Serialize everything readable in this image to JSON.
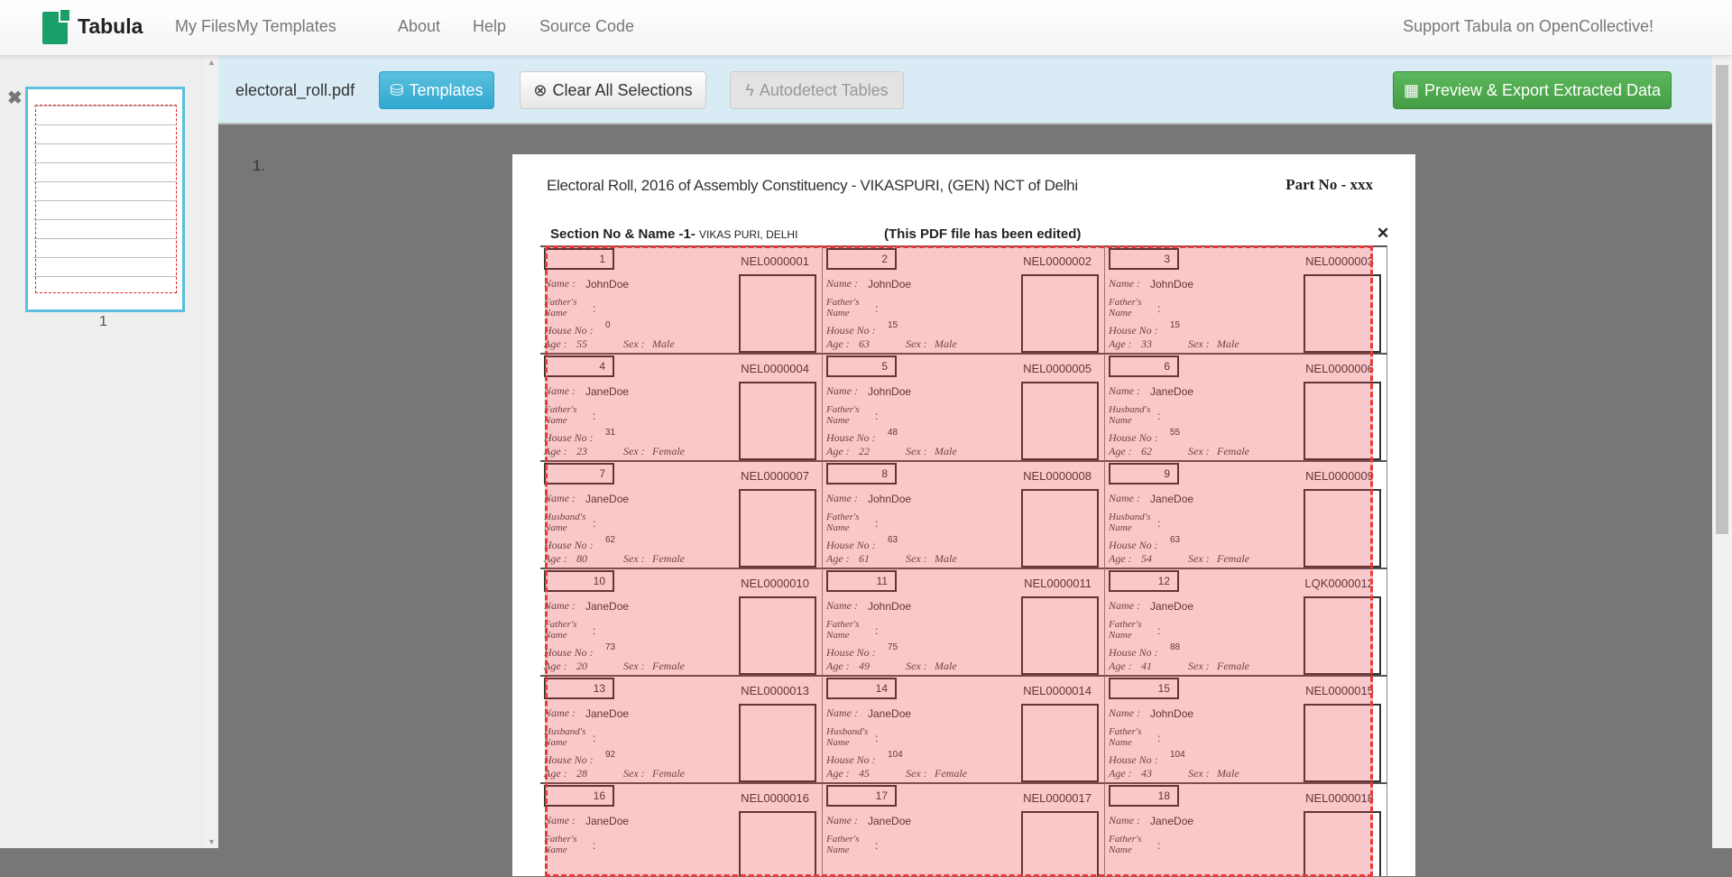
{
  "navbar": {
    "brand": "Tabula",
    "links": [
      "My Files",
      "My Templates",
      "About",
      "Help",
      "Source Code"
    ],
    "support": "Support Tabula on OpenCollective!"
  },
  "sidebar": {
    "page_label": "1"
  },
  "toolbar": {
    "filename": "electoral_roll.pdf",
    "templates": "Templates",
    "clear": "Clear All Selections",
    "autodetect": "Autodetect Tables",
    "export": "Preview & Export Extracted Data"
  },
  "colors": {
    "accent": "#5bc0de",
    "export": "#5cb85c",
    "selection": "#e23b3b",
    "toolbar_bg": "#d9ecf5"
  },
  "document": {
    "page_number": "1.",
    "title": "Electoral Roll, 2016 of Assembly Constituency - VIKASPURI,  (GEN) NCT of Delhi",
    "part_no": "Part No - xxx",
    "section_label": "Section No & Name -1-",
    "section_name": "VIKAS PURI, DELHI",
    "edited_note": "(This PDF file has been edited)",
    "labels": {
      "name": "Name :",
      "house": "House No :",
      "age": "Age :",
      "sex": "Sex :",
      "relation_suffix": "Name"
    },
    "entries": [
      {
        "n": "1",
        "id": "NEL0000001",
        "name": "JohnDoe",
        "rel": "Father's",
        "house": "0",
        "age": "55",
        "sex": "Male"
      },
      {
        "n": "2",
        "id": "NEL0000002",
        "name": "JohnDoe",
        "rel": "Father's",
        "house": "15",
        "age": "63",
        "sex": "Male"
      },
      {
        "n": "3",
        "id": "NEL0000003",
        "name": "JohnDoe",
        "rel": "Father's",
        "house": "15",
        "age": "33",
        "sex": "Male"
      },
      {
        "n": "4",
        "id": "NEL0000004",
        "name": "JaneDoe",
        "rel": "Father's",
        "house": "31",
        "age": "23",
        "sex": "Female"
      },
      {
        "n": "5",
        "id": "NEL0000005",
        "name": "JohnDoe",
        "rel": "Father's",
        "house": "48",
        "age": "22",
        "sex": "Male"
      },
      {
        "n": "6",
        "id": "NEL0000006",
        "name": "JaneDoe",
        "rel": "Husband's",
        "house": "55",
        "age": "62",
        "sex": "Female"
      },
      {
        "n": "7",
        "id": "NEL0000007",
        "name": "JaneDoe",
        "rel": "Husband's",
        "house": "62",
        "age": "80",
        "sex": "Female"
      },
      {
        "n": "8",
        "id": "NEL0000008",
        "name": "JohnDoe",
        "rel": "Father's",
        "house": "63",
        "age": "61",
        "sex": "Male"
      },
      {
        "n": "9",
        "id": "NEL0000009",
        "name": "JaneDoe",
        "rel": "Husband's",
        "house": "63",
        "age": "54",
        "sex": "Female"
      },
      {
        "n": "10",
        "id": "NEL0000010",
        "name": "JaneDoe",
        "rel": "Father's",
        "house": "73",
        "age": "20",
        "sex": "Female"
      },
      {
        "n": "11",
        "id": "NEL0000011",
        "name": "JohnDoe",
        "rel": "Father's",
        "house": "75",
        "age": "49",
        "sex": "Male"
      },
      {
        "n": "12",
        "id": "LQK0000012",
        "name": "JaneDoe",
        "rel": "Father's",
        "house": "88",
        "age": "41",
        "sex": "Female"
      },
      {
        "n": "13",
        "id": "NEL0000013",
        "name": "JaneDoe",
        "rel": "Husband's",
        "house": "92",
        "age": "28",
        "sex": "Female"
      },
      {
        "n": "14",
        "id": "NEL0000014",
        "name": "JaneDoe",
        "rel": "Husband's",
        "house": "104",
        "age": "45",
        "sex": "Female"
      },
      {
        "n": "15",
        "id": "NEL0000015",
        "name": "JohnDoe",
        "rel": "Father's",
        "house": "104",
        "age": "43",
        "sex": "Male"
      },
      {
        "n": "16",
        "id": "NEL0000016",
        "name": "JaneDoe",
        "rel": "Father's"
      },
      {
        "n": "17",
        "id": "NEL0000017",
        "name": "JaneDoe",
        "rel": "Father's"
      },
      {
        "n": "18",
        "id": "NEL0000018",
        "name": "JaneDoe",
        "rel": "Father's"
      }
    ]
  }
}
